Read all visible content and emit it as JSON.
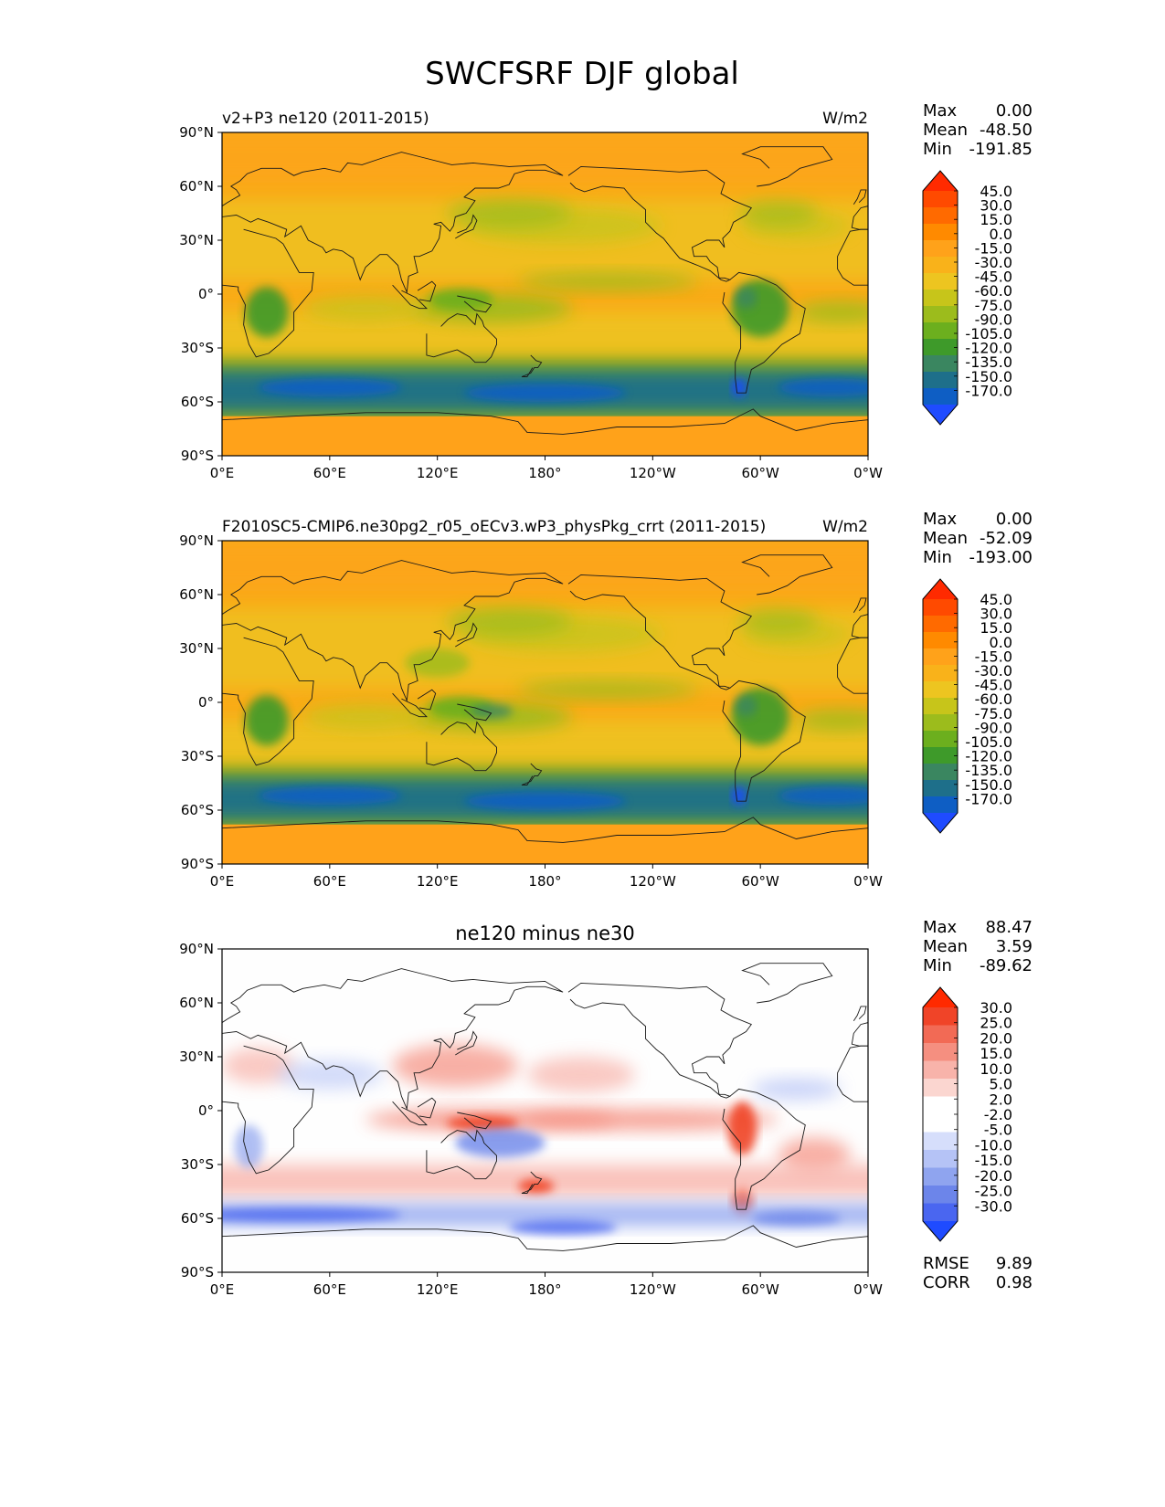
{
  "figure_title": "SWCFSRF DJF global",
  "lat_ticks": [
    "90°N",
    "60°N",
    "30°N",
    "0°",
    "30°S",
    "60°S",
    "90°S"
  ],
  "lon_ticks": [
    "0°E",
    "60°E",
    "120°E",
    "180°",
    "120°W",
    "60°W",
    "0°W"
  ],
  "panels": [
    {
      "title_left": "v2+P3 ne120 (2011-2015)",
      "title_center": "",
      "units": "W/m2",
      "stats": [
        {
          "label": "Max",
          "value": "0.00"
        },
        {
          "label": "Mean",
          "value": "-48.50"
        },
        {
          "label": "Min",
          "value": "-191.85"
        }
      ],
      "colorbar_labels": [
        "45.0",
        "30.0",
        "15.0",
        "0.0",
        "-15.0",
        "-30.0",
        "-45.0",
        "-60.0",
        "-75.0",
        "-90.0",
        "-105.0",
        "-120.0",
        "-135.0",
        "-150.0",
        "-170.0"
      ],
      "extra_stats": []
    },
    {
      "title_left": "F2010SC5-CMIP6.ne30pg2_r05_oECv3.wP3_physPkg_crrt (2011-2015)",
      "title_center": "",
      "units": "W/m2",
      "stats": [
        {
          "label": "Max",
          "value": "0.00"
        },
        {
          "label": "Mean",
          "value": "-52.09"
        },
        {
          "label": "Min",
          "value": "-193.00"
        }
      ],
      "colorbar_labels": [
        "45.0",
        "30.0",
        "15.0",
        "0.0",
        "-15.0",
        "-30.0",
        "-45.0",
        "-60.0",
        "-75.0",
        "-90.0",
        "-105.0",
        "-120.0",
        "-135.0",
        "-150.0",
        "-170.0"
      ],
      "extra_stats": []
    },
    {
      "title_left": "",
      "title_center": "ne120 minus ne30",
      "units": "",
      "stats": [
        {
          "label": "Max",
          "value": "88.47"
        },
        {
          "label": "Mean",
          "value": "3.59"
        },
        {
          "label": "Min",
          "value": "-89.62"
        }
      ],
      "colorbar_labels": [
        "30.0",
        "25.0",
        "20.0",
        "15.0",
        "10.0",
        "5.0",
        "2.0",
        "-2.0",
        "-5.0",
        "-10.0",
        "-15.0",
        "-20.0",
        "-25.0",
        "-30.0"
      ],
      "extra_stats": [
        {
          "label": "RMSE",
          "value": "9.89"
        },
        {
          "label": "CORR",
          "value": "0.98"
        }
      ]
    }
  ],
  "colors": {
    "model_palette": [
      "#ff2a00",
      "#ff4a00",
      "#ff6a00",
      "#ff8a00",
      "#ffa21a",
      "#f9b21a",
      "#edc520",
      "#c7c51a",
      "#9cbc1c",
      "#6caf1e",
      "#3e9a2a",
      "#3a8660",
      "#1e6f8a",
      "#0e5ec4",
      "#1f4bff"
    ],
    "diff_palette": [
      "#ff2a00",
      "#f04428",
      "#f26a55",
      "#f58f80",
      "#f8b3aa",
      "#fbd6d0",
      "#ffffff",
      "#ffffff",
      "#d6defb",
      "#b5c3f6",
      "#8fa4ef",
      "#6c85ea",
      "#4a66f0",
      "#1f4bff"
    ],
    "ocean_base": "#f9ab18",
    "diff_base": "#fefefe"
  },
  "chart_data": [
    {
      "type": "heatmap",
      "title": "v2+P3 ne120 (2011-2015)",
      "units": "W/m2",
      "x_range": [
        0,
        360
      ],
      "y_range": [
        -90,
        90
      ],
      "levels": [
        45.0,
        30.0,
        15.0,
        0.0,
        -15.0,
        -30.0,
        -45.0,
        -60.0,
        -75.0,
        -90.0,
        -105.0,
        -120.0,
        -135.0,
        -150.0,
        -170.0
      ],
      "max": 0.0,
      "mean": -48.5,
      "min": -191.85
    },
    {
      "type": "heatmap",
      "title": "F2010SC5-CMIP6.ne30pg2_r05_oECv3.wP3_physPkg_crrt (2011-2015)",
      "units": "W/m2",
      "x_range": [
        0,
        360
      ],
      "y_range": [
        -90,
        90
      ],
      "levels": [
        45.0,
        30.0,
        15.0,
        0.0,
        -15.0,
        -30.0,
        -45.0,
        -60.0,
        -75.0,
        -90.0,
        -105.0,
        -120.0,
        -135.0,
        -150.0,
        -170.0
      ],
      "max": 0.0,
      "mean": -52.09,
      "min": -193.0
    },
    {
      "type": "heatmap",
      "title": "ne120 minus ne30",
      "x_range": [
        0,
        360
      ],
      "y_range": [
        -90,
        90
      ],
      "levels": [
        30.0,
        25.0,
        20.0,
        15.0,
        10.0,
        5.0,
        2.0,
        -2.0,
        -5.0,
        -10.0,
        -15.0,
        -20.0,
        -25.0,
        -30.0
      ],
      "max": 88.47,
      "mean": 3.59,
      "min": -89.62,
      "rmse": 9.89,
      "corr": 0.98
    }
  ]
}
